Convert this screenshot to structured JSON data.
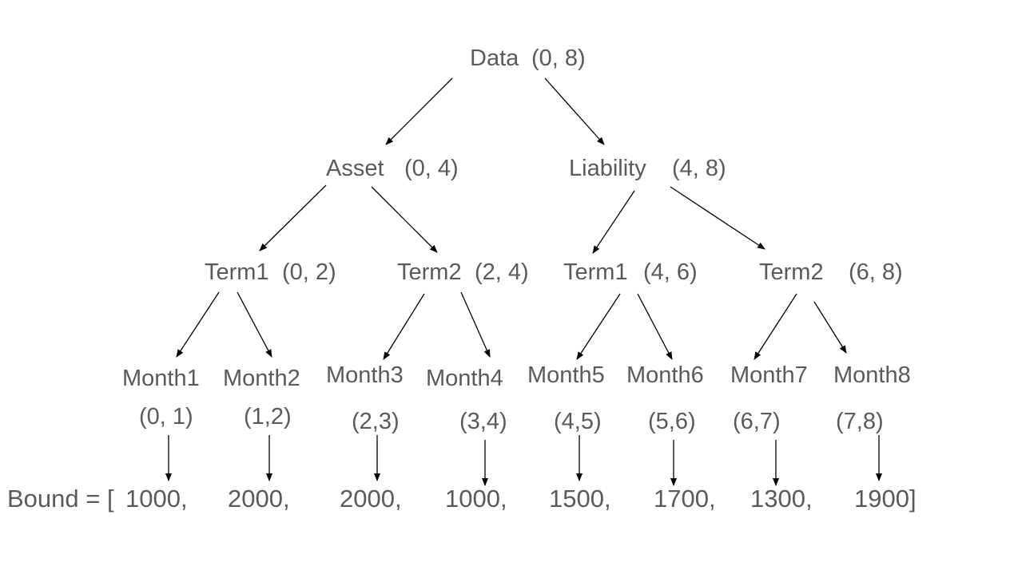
{
  "tree": {
    "root": {
      "name": "Data",
      "range": "(0, 8)"
    },
    "level1": [
      {
        "name": "Asset",
        "range": "(0, 4)"
      },
      {
        "name": "Liability",
        "range": "(4, 8)"
      }
    ],
    "level2": [
      {
        "name": "Term1",
        "range": "(0, 2)"
      },
      {
        "name": "Term2",
        "range": "(2, 4)"
      },
      {
        "name": "Term1",
        "range": "(4, 6)"
      },
      {
        "name": "Term2",
        "range": "(6, 8)"
      }
    ],
    "level3": [
      {
        "name": "Month1",
        "range": "(0, 1)"
      },
      {
        "name": "Month2",
        "range": "(1,2)"
      },
      {
        "name": "Month3",
        "range": "(2,3)"
      },
      {
        "name": "Month4",
        "range": "(3,4)"
      },
      {
        "name": "Month5",
        "range": "(4,5)"
      },
      {
        "name": "Month6",
        "range": "(5,6)"
      },
      {
        "name": "Month7",
        "range": "(6,7)"
      },
      {
        "name": "Month8",
        "range": "(7,8)"
      }
    ]
  },
  "bound": {
    "prefix": "Bound = [",
    "values": [
      "1000,",
      "2000,",
      "2000,",
      "1000,",
      "1500,",
      "1700,",
      "1300,",
      "1900]"
    ]
  }
}
